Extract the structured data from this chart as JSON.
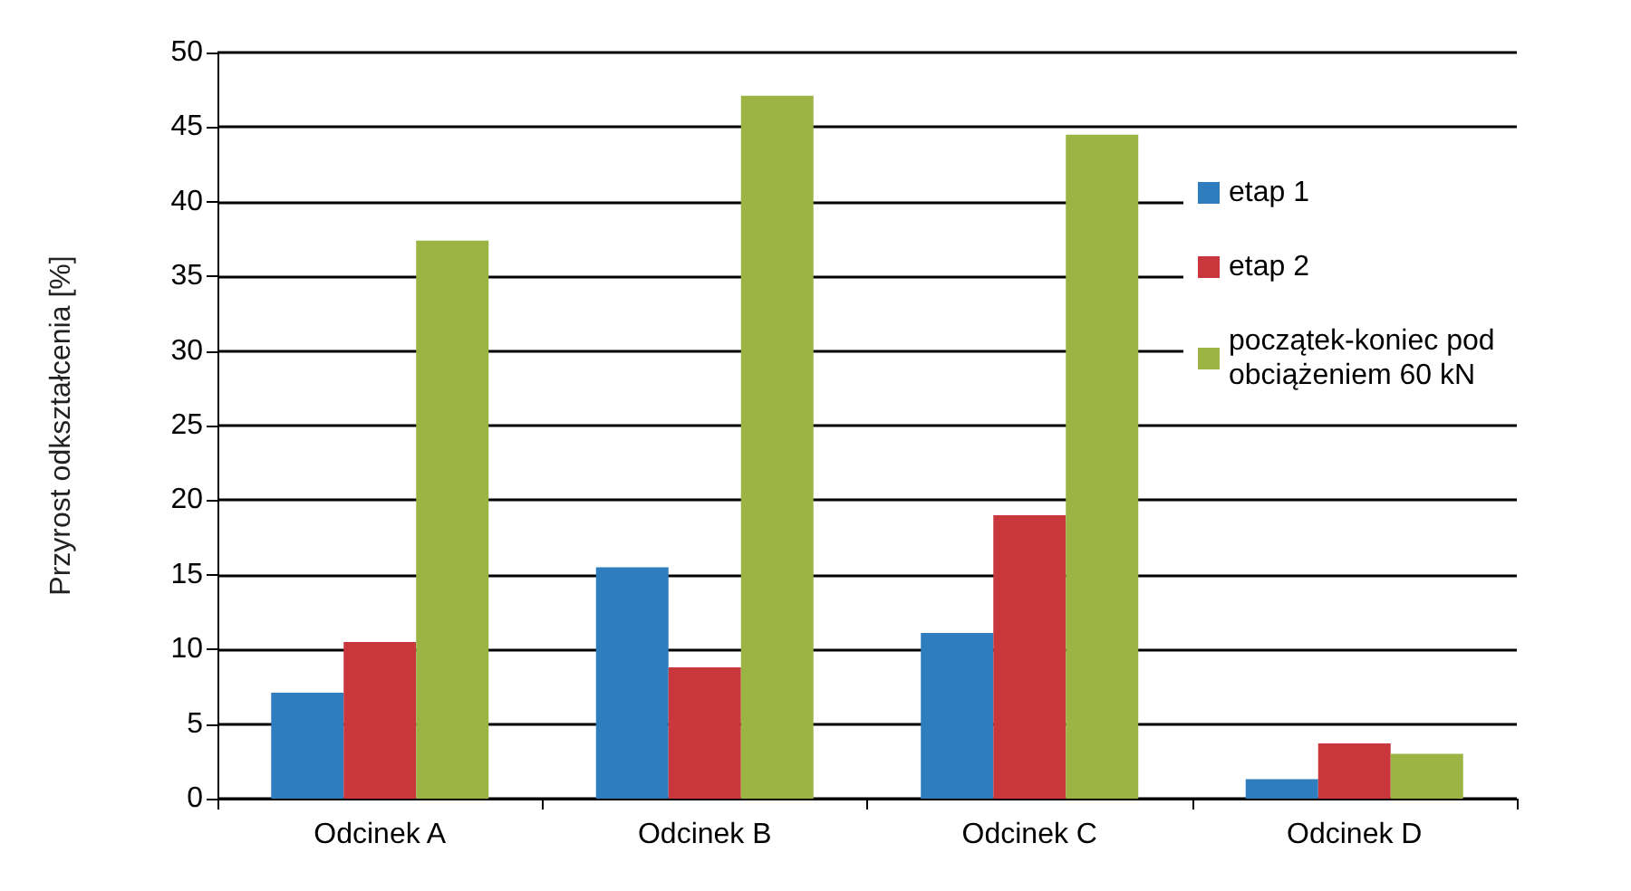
{
  "chart_data": {
    "type": "bar",
    "ylabel": "Przyrost odkształcenia [%]",
    "categories": [
      "Odcinek A",
      "Odcinek B",
      "Odcinek C",
      "Odcinek D"
    ],
    "series": [
      {
        "name": "etap 1",
        "color": "#2e7ebf",
        "values": [
          7.1,
          15.5,
          11.1,
          1.3
        ]
      },
      {
        "name": "etap 2",
        "color": "#c9373c",
        "values": [
          10.5,
          8.8,
          19.0,
          3.7
        ]
      },
      {
        "name": "początek-koniec pod obciążeniem 60 kN",
        "color": "#9bb443",
        "values": [
          37.4,
          47.1,
          44.5,
          3.0
        ]
      }
    ],
    "ylim": [
      0,
      50
    ],
    "yticks": [
      0,
      5,
      10,
      15,
      20,
      25,
      30,
      35,
      40,
      45,
      50
    ],
    "grid": "y",
    "legend": "right"
  }
}
